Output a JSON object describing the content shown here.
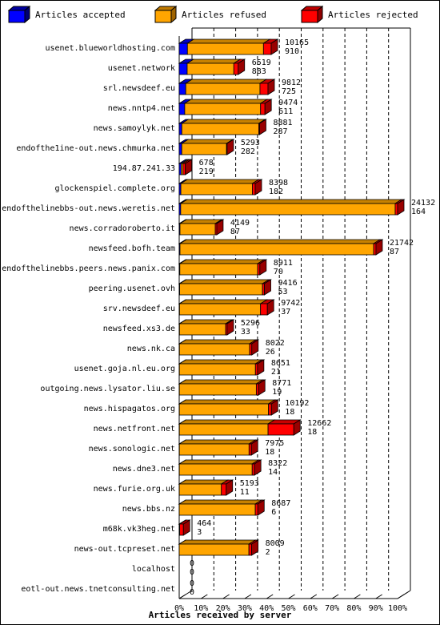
{
  "legend": [
    {
      "label": "Articles accepted",
      "color": "#0000ff"
    },
    {
      "label": "Articles refused",
      "color": "#ffa500"
    },
    {
      "label": "Articles rejected",
      "color": "#ff0000"
    }
  ],
  "chart_data": {
    "type": "bar",
    "orientation": "horizontal",
    "stacked": true,
    "xlabel": "Articles received by server",
    "x_ticks": [
      "0%",
      "10%",
      "20%",
      "30%",
      "40%",
      "50%",
      "60%",
      "70%",
      "80%",
      "90%",
      "100%"
    ],
    "xlim": [
      0,
      24132
    ],
    "grid": "vertical dashed",
    "legend_position": "top",
    "categories": [
      "usenet.blueworldhosting.com",
      "usenet.network",
      "srl.newsdeef.eu",
      "news.nntp4.net",
      "news.samoylyk.net",
      "endofthe1ine-out.news.chmurka.net",
      "194.87.241.33",
      "glockenspiel.complete.org",
      "endofthelinebbs-out.news.weretis.net",
      "news.corradoroberto.it",
      "newsfeed.bofh.team",
      "endofthelinebbs.peers.news.panix.com",
      "peering.usenet.ovh",
      "srv.newsdeef.eu",
      "newsfeed.xs3.de",
      "news.nk.ca",
      "usenet.goja.nl.eu.org",
      "outgoing.news.lysator.liu.se",
      "news.hispagatos.org",
      "news.netfront.net",
      "news.sonologic.net",
      "news.dne3.net",
      "news.furie.org.uk",
      "news.bbs.nz",
      "m68k.vk3heg.net",
      "news-out.tcpreset.net",
      "localhost",
      "eotl-out.news.tnetconsulting.net"
    ],
    "totals": [
      10165,
      6519,
      9812,
      9474,
      8881,
      5293,
      678,
      8398,
      24132,
      4149,
      21742,
      8911,
      9416,
      9742,
      5296,
      8022,
      8651,
      8771,
      10192,
      12662,
      7975,
      8322,
      5193,
      8687,
      464,
      8009,
      0,
      0
    ],
    "secondary": [
      910,
      883,
      725,
      611,
      287,
      282,
      219,
      182,
      164,
      87,
      87,
      70,
      53,
      37,
      33,
      26,
      21,
      19,
      18,
      18,
      18,
      14,
      11,
      6,
      3,
      2,
      0,
      0
    ],
    "series": [
      {
        "name": "Articles accepted",
        "values": [
          910,
          883,
          725,
          611,
          287,
          282,
          219,
          182,
          164,
          87,
          87,
          70,
          53,
          37,
          33,
          26,
          21,
          19,
          18,
          18,
          18,
          14,
          11,
          6,
          3,
          2,
          0,
          0
        ]
      },
      {
        "name": "Articles refused",
        "values": [
          8400,
          5150,
          8200,
          8380,
          8500,
          4950,
          200,
          7900,
          23700,
          3900,
          21400,
          8600,
          9150,
          8950,
          5100,
          7750,
          8400,
          8500,
          9850,
          9800,
          7700,
          8050,
          4650,
          8400,
          50,
          7700,
          0,
          0
        ]
      },
      {
        "name": "Articles rejected",
        "values": [
          855,
          486,
          887,
          483,
          94,
          61,
          259,
          316,
          268,
          162,
          255,
          241,
          213,
          755,
          163,
          246,
          230,
          252,
          324,
          2844,
          257,
          258,
          532,
          281,
          411,
          307,
          0,
          0
        ]
      }
    ]
  }
}
